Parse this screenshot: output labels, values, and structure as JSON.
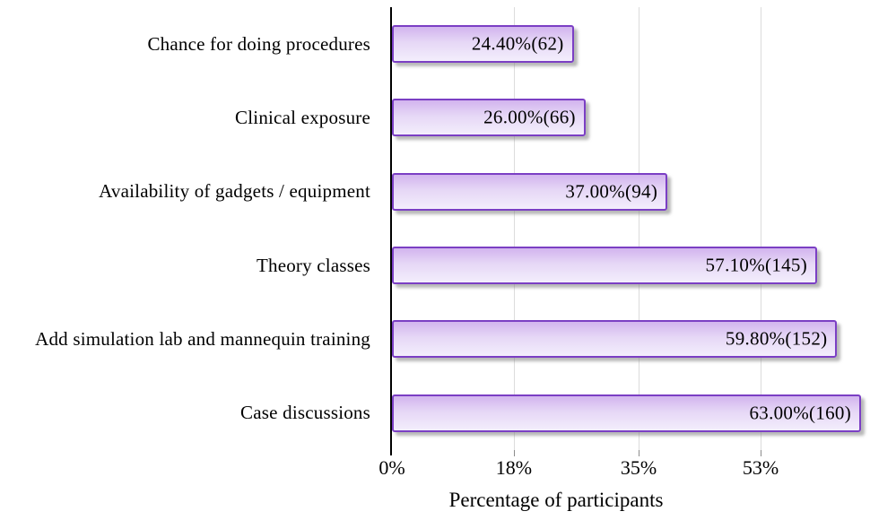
{
  "chart_data": {
    "type": "bar",
    "orientation": "horizontal",
    "title": "",
    "xlabel": "Percentage of participants",
    "ylabel": "",
    "grid": "vertical-only",
    "legend_position": "none",
    "categories": [
      "Chance for doing procedures",
      "Clinical exposure",
      "Availability of gadgets / equipment",
      "Theory classes",
      "Add simulation lab and mannequin training",
      "Case discussions"
    ],
    "values": [
      24.4,
      26.0,
      37.0,
      57.1,
      59.8,
      63.0
    ],
    "counts": [
      62,
      66,
      94,
      145,
      152,
      160
    ],
    "bar_labels": [
      "24.40%(62)",
      "26.00%(66)",
      "37.00%(94)",
      "57.10%(145)",
      "59.80%(152)",
      "63.00%(160)"
    ],
    "x_ticks": [
      {
        "label": "0%",
        "pos": 0
      },
      {
        "label": "18%",
        "pos": 0.26
      },
      {
        "label": "35%",
        "pos": 0.526
      },
      {
        "label": "53%",
        "pos": 0.786
      }
    ],
    "x_plot_max": 63,
    "xlim": [
      0,
      63
    ],
    "style": {
      "bar_border": "#7b3fc4",
      "bar_fill_top": "#d2b4ee",
      "bar_fill_mid": "#e6d7f6",
      "bar_fill_bottom": "#f3eefc",
      "gridline_color": "#dcdcdc",
      "axis_color": "#000000",
      "tick_color": "#8c8c8c",
      "text_color": "#000000"
    }
  }
}
